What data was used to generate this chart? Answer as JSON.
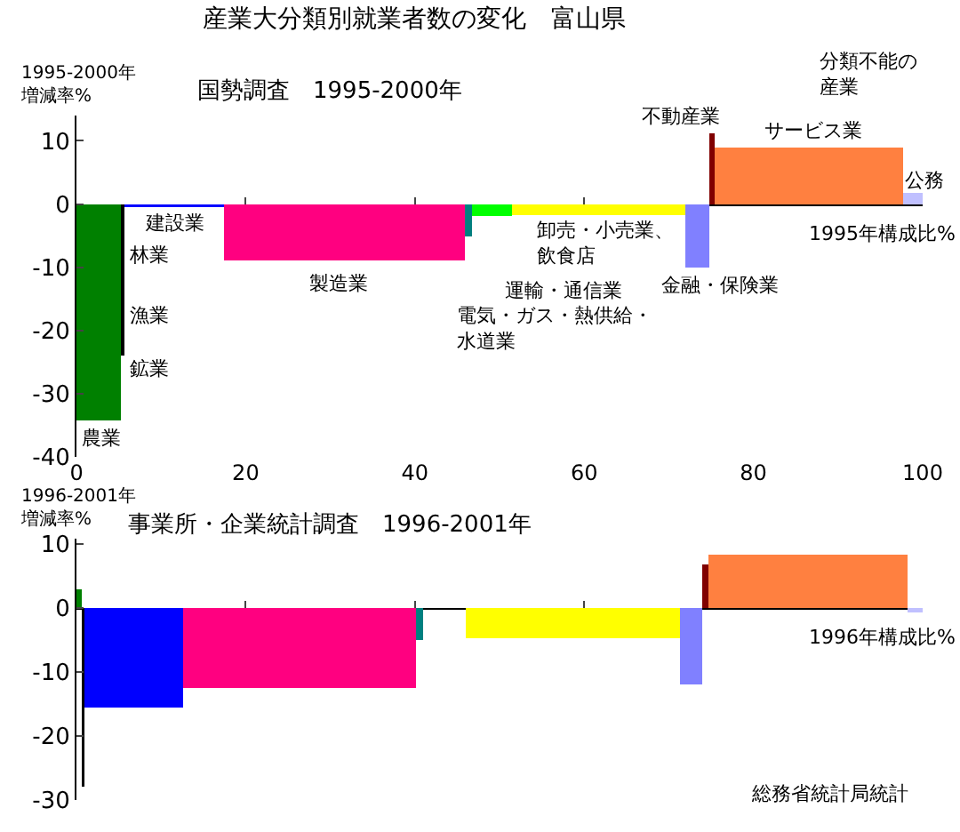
{
  "chart_data": [
    {
      "type": "histogram",
      "title": "産業大分類別就業者数の変化　富山県",
      "subtitle": "国勢調査　1995-2000年",
      "ylabel": "1995-2000年増減率%",
      "xlabel": "1995年構成比%",
      "bins": [
        0,
        5.2,
        5.7,
        17.4,
        45.9,
        46.7,
        51.5,
        72.0,
        74.8,
        75.4,
        97.7,
        100
      ],
      "values": [
        -34.3,
        -24,
        -0.5,
        -8.9,
        -5.1,
        -1.9,
        -1.7,
        -10,
        11.2,
        8.9,
        1.7
      ],
      "colors": [
        "#008000",
        "#000000",
        "#0000ff",
        "#ff0080",
        "#008080",
        "#00ff00",
        "#ffff00",
        "#8080ff",
        "#800000",
        "#ff8040",
        "#c0c0ff"
      ],
      "xlim": [
        0,
        100
      ],
      "xticks": [
        0,
        20,
        40,
        60,
        80,
        100
      ],
      "ylim": [
        -40,
        14
      ],
      "yticks": [
        -40,
        -30,
        -20,
        -10,
        0,
        10
      ],
      "annotations": [
        "農業",
        "林業",
        "漁業",
        "鉱業",
        "建設業",
        "製造業",
        "電気・ガス・熱供給・水道業",
        "運輸・通信業",
        "卸売・小売業、飲食店",
        "金融・保険業",
        "不動産業",
        "サービス業",
        "公務",
        "分類不能の産業"
      ]
    },
    {
      "type": "histogram",
      "subtitle": "事業所・企業統計調査　1996-2001年",
      "ylabel": "1996-2001年増減率%",
      "xlabel": "1996年構成比%",
      "bins": [
        0,
        0.6,
        0.9,
        12.6,
        40.1,
        41.0,
        46.0,
        71.3,
        74.0,
        74.7,
        98.2,
        100
      ],
      "values": [
        2.9,
        -27.9,
        -15.5,
        -12.5,
        -5,
        0,
        -4.7,
        -12,
        6.8,
        8.3,
        -0.7
      ],
      "colors": [
        "#008000",
        "#000000",
        "#0000ff",
        "#ff0080",
        "#008080",
        "#00ff00",
        "#ffff00",
        "#8080ff",
        "#800000",
        "#ff8040",
        "#c0c0ff"
      ],
      "xlim": [
        0,
        100
      ],
      "xticks": [
        0,
        20,
        40,
        60,
        80,
        100
      ],
      "ylim": [
        -30,
        10.8
      ],
      "yticks": [
        -30,
        -20,
        -10,
        0,
        10
      ],
      "tick_labels": "y",
      "annotations": [
        "総務省統計局統計"
      ]
    }
  ]
}
